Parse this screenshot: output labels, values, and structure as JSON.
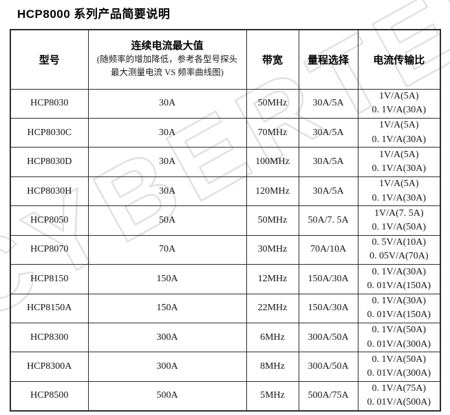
{
  "page": {
    "title": "HCP8000 系列产品简要说明"
  },
  "watermark": {
    "text": "CYBERTEK",
    "color": "#e0e0e0"
  },
  "colors": {
    "border": "#2b2b2b",
    "text": "#141414",
    "watermark": "#e0e0e0"
  },
  "table": {
    "headers": {
      "model": "型号",
      "max_current_title": "连续电流最大值",
      "max_current_note_line1": "(随频率的增加降低，参考各型号探头",
      "max_current_note_line2": "最大测量电流 VS 频率曲线图)",
      "bandwidth": "带宽",
      "range": "量程选择",
      "ratio": "电流传输比"
    },
    "rows": [
      {
        "model": "HCP8030",
        "max_current": "30A",
        "bandwidth": "50MHz",
        "range": "30A/5A",
        "ratio_line1": "1V/A(5A)",
        "ratio_line2": "0. 1V/A(30A)"
      },
      {
        "model": "HCP8030C",
        "max_current": "30A",
        "bandwidth": "70MHz",
        "range": "30A/5A",
        "ratio_line1": "1V/A(5A)",
        "ratio_line2": "0. 1V/A(30A)"
      },
      {
        "model": "HCP8030D",
        "max_current": "30A",
        "bandwidth": "100MHz",
        "range": "30A/5A",
        "ratio_line1": "1V/A(5A)",
        "ratio_line2": "0. 1V/A(30A)"
      },
      {
        "model": "HCP8030H",
        "max_current": "30A",
        "bandwidth": "120MHz",
        "range": "30A/5A",
        "ratio_line1": "1V/A(5A)",
        "ratio_line2": "0. 1V/A(30A)"
      },
      {
        "model": "HCP8050",
        "max_current": "50A",
        "bandwidth": "50MHz",
        "range": "50A/7. 5A",
        "ratio_line1": "1V/A(7. 5A)",
        "ratio_line2": "0. 1V/A(50A)"
      },
      {
        "model": "HCP8070",
        "max_current": "70A",
        "bandwidth": "30MHz",
        "range": "70A/10A",
        "ratio_line1": "0. 5V/A(10A)",
        "ratio_line2": "0. 05V/A(70A)"
      },
      {
        "model": "HCP8150",
        "max_current": "150A",
        "bandwidth": "12MHz",
        "range": "150A/30A",
        "ratio_line1": "0. 1V/A(30A)",
        "ratio_line2": "0. 01V/A(150A)"
      },
      {
        "model": "HCP8150A",
        "max_current": "150A",
        "bandwidth": "22MHz",
        "range": "150A/30A",
        "ratio_line1": "0. 1V/A(30A)",
        "ratio_line2": "0. 01V/A(150A)"
      },
      {
        "model": "HCP8300",
        "max_current": "300A",
        "bandwidth": "6MHz",
        "range": "300A/50A",
        "ratio_line1": "0. 1V/A(50A)",
        "ratio_line2": "0. 01V/A(300A)"
      },
      {
        "model": "HCP8300A",
        "max_current": "300A",
        "bandwidth": "8MHz",
        "range": "300A/50A",
        "ratio_line1": "0. 1V/A(50A)",
        "ratio_line2": "0. 01V/A(300A)"
      },
      {
        "model": "HCP8500",
        "max_current": "500A",
        "bandwidth": "5MHz",
        "range": "500A/75A",
        "ratio_line1": "0. 1V/A(75A)",
        "ratio_line2": "0. 01V/A(500A)"
      }
    ]
  }
}
